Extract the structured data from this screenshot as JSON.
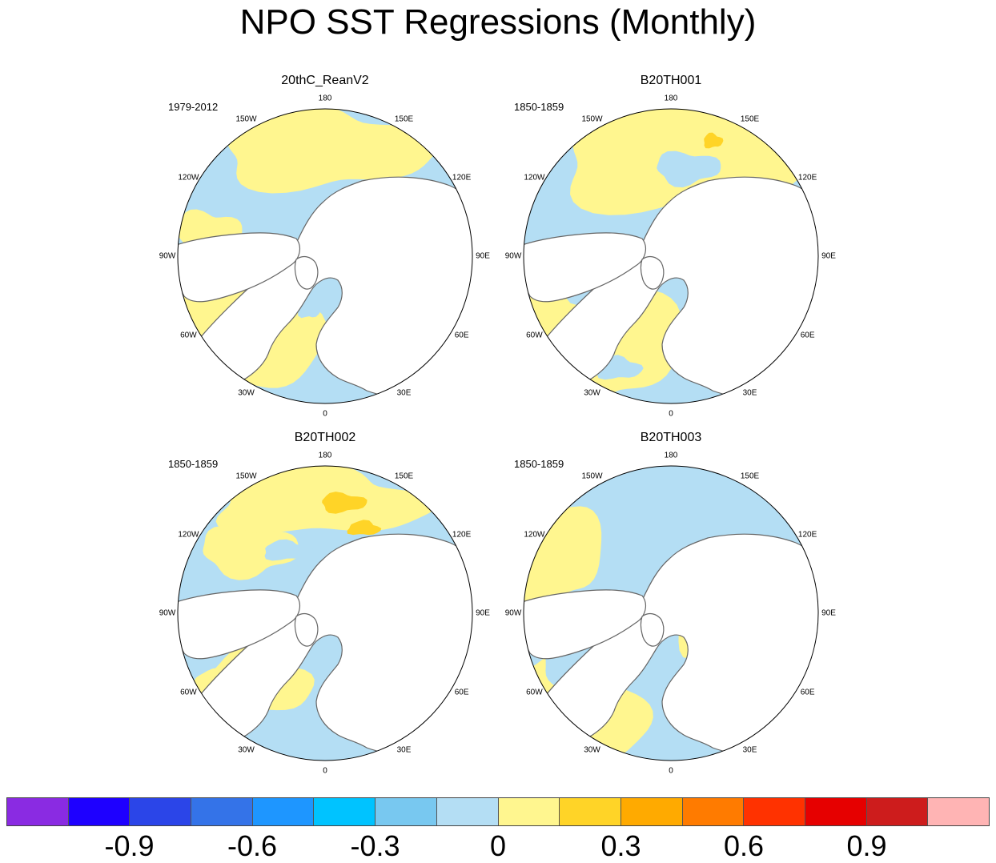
{
  "title": "NPO SST Regressions (Monthly)",
  "longitude_labels": [
    "180",
    "150E",
    "120E",
    "90E",
    "60E",
    "30E",
    "0",
    "30W",
    "60W",
    "90W",
    "120W",
    "150W"
  ],
  "panels": [
    {
      "name": "20thC_ReanV2",
      "period": "1979-2012"
    },
    {
      "name": "B20TH001",
      "period": "1850-1859"
    },
    {
      "name": "B20TH002",
      "period": "1850-1859"
    },
    {
      "name": "B20TH003",
      "period": "1850-1859"
    }
  ],
  "colorbar": {
    "colors": [
      "#8a2be2",
      "#1e00ff",
      "#2b45e8",
      "#3473e8",
      "#1e96ff",
      "#00c3ff",
      "#78c8f0",
      "#b4def4",
      "#fff68f",
      "#ffd427",
      "#ffaa00",
      "#ff7b00",
      "#ff3200",
      "#e60000",
      "#cd1c1c",
      "#ffb4b4"
    ],
    "tick_labels": [
      "-0.9",
      "-0.6",
      "-0.3",
      "0",
      "0.3",
      "0.6",
      "0.9"
    ]
  },
  "colors": {
    "land": "#ffffff",
    "coast": "#666666",
    "negative_weak": "#b4def4",
    "positive_weak": "#fff68f",
    "positive_mid": "#ffd427"
  }
}
